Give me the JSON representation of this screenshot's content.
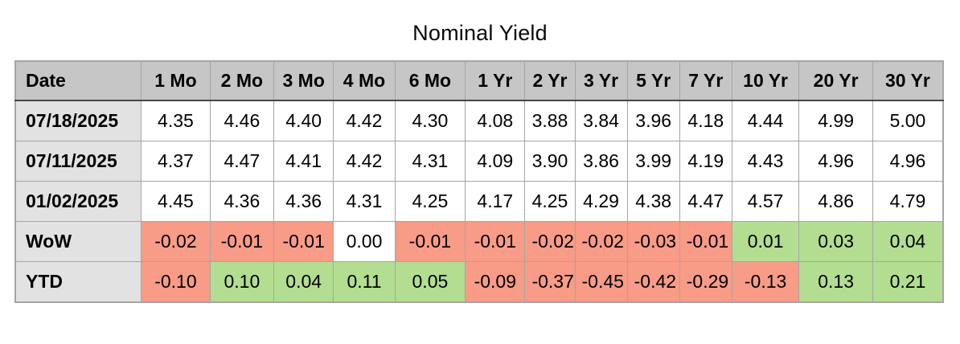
{
  "chart_data": {
    "type": "table",
    "title": "Nominal Yield",
    "columns": [
      "Date",
      "1 Mo",
      "2 Mo",
      "3 Mo",
      "4 Mo",
      "6 Mo",
      "1 Yr",
      "2 Yr",
      "3 Yr",
      "5 Yr",
      "7 Yr",
      "10 Yr",
      "20 Yr",
      "30 Yr"
    ],
    "rows": [
      {
        "label": "07/18/2025",
        "coloring": "none",
        "values": [
          "4.35",
          "4.46",
          "4.40",
          "4.42",
          "4.30",
          "4.08",
          "3.88",
          "3.84",
          "3.96",
          "4.18",
          "4.44",
          "4.99",
          "5.00"
        ]
      },
      {
        "label": "07/11/2025",
        "coloring": "none",
        "values": [
          "4.37",
          "4.47",
          "4.41",
          "4.42",
          "4.31",
          "4.09",
          "3.90",
          "3.86",
          "3.99",
          "4.19",
          "4.43",
          "4.96",
          "4.96"
        ]
      },
      {
        "label": "01/02/2025",
        "coloring": "none",
        "values": [
          "4.45",
          "4.36",
          "4.36",
          "4.31",
          "4.25",
          "4.17",
          "4.25",
          "4.29",
          "4.38",
          "4.47",
          "4.57",
          "4.86",
          "4.79"
        ]
      },
      {
        "label": "WoW",
        "coloring": "sign",
        "values": [
          "-0.02",
          "-0.01",
          "-0.01",
          "0.00",
          "-0.01",
          "-0.01",
          "-0.02",
          "-0.02",
          "-0.03",
          "-0.01",
          "0.01",
          "0.03",
          "0.04"
        ]
      },
      {
        "label": "YTD",
        "coloring": "sign",
        "values": [
          "-0.10",
          "0.10",
          "0.04",
          "0.11",
          "0.05",
          "-0.09",
          "-0.37",
          "-0.45",
          "-0.42",
          "-0.29",
          "-0.13",
          "0.13",
          "0.21"
        ]
      }
    ],
    "layout_hints": {
      "grid": true,
      "header_position": "top",
      "label_column_position": "left"
    }
  },
  "colors": {
    "positive_bg": "#b3dd90",
    "negative_bg": "#f89b87",
    "neutral_bg": "#ffffff",
    "header_bg": "#c6c6c6",
    "label_bg": "#e2e2e2",
    "grid_border": "#a5a5a5",
    "header_rule": "#474747",
    "text": "#000000"
  }
}
